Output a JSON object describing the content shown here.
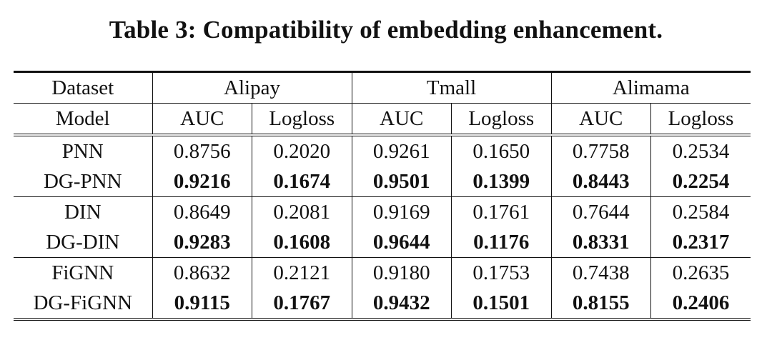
{
  "caption": "Table 3: Compatibility of embedding enhancement.",
  "header": {
    "dataset_label": "Dataset",
    "model_label": "Model",
    "datasets": [
      "Alipay",
      "Tmall",
      "Alimama"
    ],
    "metrics": [
      "AUC",
      "Logloss",
      "AUC",
      "Logloss",
      "AUC",
      "Logloss"
    ]
  },
  "rows": [
    {
      "model": "PNN",
      "values": [
        "0.8756",
        "0.2020",
        "0.9261",
        "0.1650",
        "0.7758",
        "0.2534"
      ],
      "bold": false
    },
    {
      "model": "DG-PNN",
      "values": [
        "0.9216",
        "0.1674",
        "0.9501",
        "0.1399",
        "0.8443",
        "0.2254"
      ],
      "bold": true
    },
    {
      "model": "DIN",
      "values": [
        "0.8649",
        "0.2081",
        "0.9169",
        "0.1761",
        "0.7644",
        "0.2584"
      ],
      "bold": false
    },
    {
      "model": "DG-DIN",
      "values": [
        "0.9283",
        "0.1608",
        "0.9644",
        "0.1176",
        "0.8331",
        "0.2317"
      ],
      "bold": true
    },
    {
      "model": "FiGNN",
      "values": [
        "0.8632",
        "0.2121",
        "0.9180",
        "0.1753",
        "0.7438",
        "0.2635"
      ],
      "bold": false
    },
    {
      "model": "DG-FiGNN",
      "values": [
        "0.9115",
        "0.1767",
        "0.9432",
        "0.1501",
        "0.8155",
        "0.2406"
      ],
      "bold": true
    }
  ]
}
